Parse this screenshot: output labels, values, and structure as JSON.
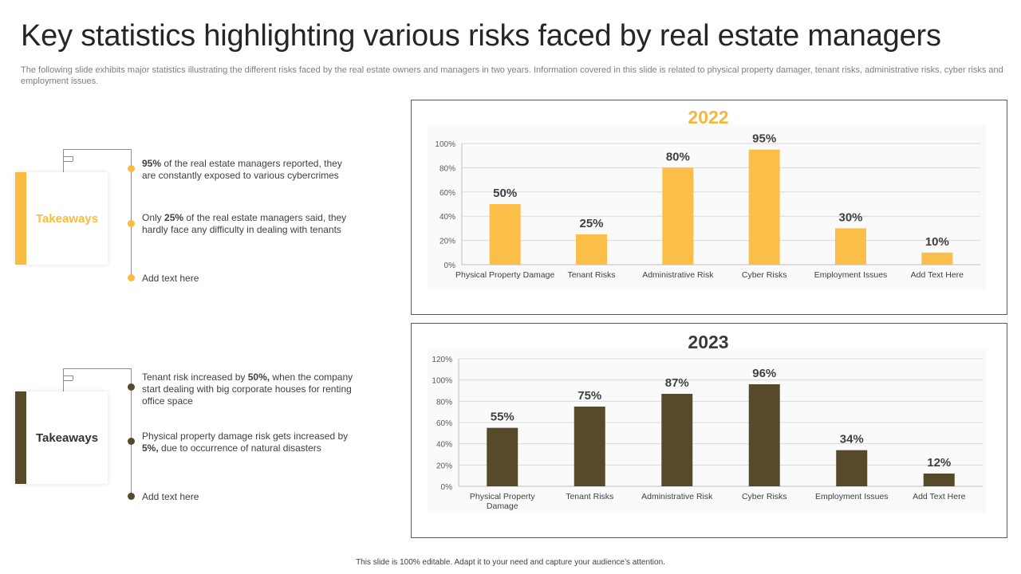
{
  "slide": {
    "title": "Key statistics highlighting various risks faced by real estate managers",
    "subtitle": "The following slide exhibits major statistics illustrating the different risks faced by the real estate owners and managers in two years. Information covered in this slide is related to physical property damager, tenant risks, administrative risks, cyber risks and employment issues.",
    "footer": "This slide is 100% editable. Adapt it to your need and capture your audience’s attention."
  },
  "takeaways": [
    {
      "label": "Takeaways",
      "accent": "#F9BB41",
      "bullets": [
        {
          "bold": "95%",
          "text": " of the real estate managers reported, they are constantly exposed to various cybercrimes"
        },
        {
          "pre": "Only ",
          "bold": "25%",
          "text": " of the real estate managers said, they hardly face any difficulty in dealing with tenants"
        },
        {
          "text": "Add text here"
        }
      ]
    },
    {
      "label": "Takeaways",
      "accent": "#564A2A",
      "bullets": [
        {
          "pre": "Tenant risk increased by ",
          "bold": "50%,",
          "text": "  when the company start dealing with big corporate houses for renting office space"
        },
        {
          "pre": "Physical property damage risk gets increased by ",
          "bold": "5%,",
          "text": "  due to occurrence of natural disasters"
        },
        {
          "text": "Add text here"
        }
      ]
    }
  ],
  "chart_data": [
    {
      "type": "bar",
      "title": "2022",
      "categories": [
        "Physical Property Damage",
        "Tenant Risks",
        "Administrative Risk",
        "Cyber Risks",
        "Employment Issues",
        "Add Text Here"
      ],
      "values": [
        50,
        25,
        80,
        95,
        30,
        10
      ],
      "data_labels": [
        "50%",
        "25%",
        "80%",
        "95%",
        "30%",
        "10%"
      ],
      "yticks": [
        "0%",
        "20%",
        "40%",
        "60%",
        "80%",
        "100%"
      ],
      "ylim": [
        0,
        100
      ],
      "grid": true,
      "bar_color": "#FBBE48",
      "title_color": "#F4B63E"
    },
    {
      "type": "bar",
      "title": "2023",
      "categories": [
        "Physical Property Damage",
        "Tenant Risks",
        "Administrative Risk",
        "Cyber Risks",
        "Employment Issues",
        "Add Text Here"
      ],
      "values": [
        55,
        75,
        87,
        96,
        34,
        12
      ],
      "data_labels": [
        "55%",
        "75%",
        "87%",
        "96%",
        "34%",
        "12%"
      ],
      "yticks": [
        "0%",
        "20%",
        "40%",
        "60%",
        "80%",
        "100%",
        "120%"
      ],
      "ylim": [
        0,
        120
      ],
      "grid": true,
      "bar_color": "#564A2A",
      "title_color": "#3A3A3A"
    }
  ]
}
